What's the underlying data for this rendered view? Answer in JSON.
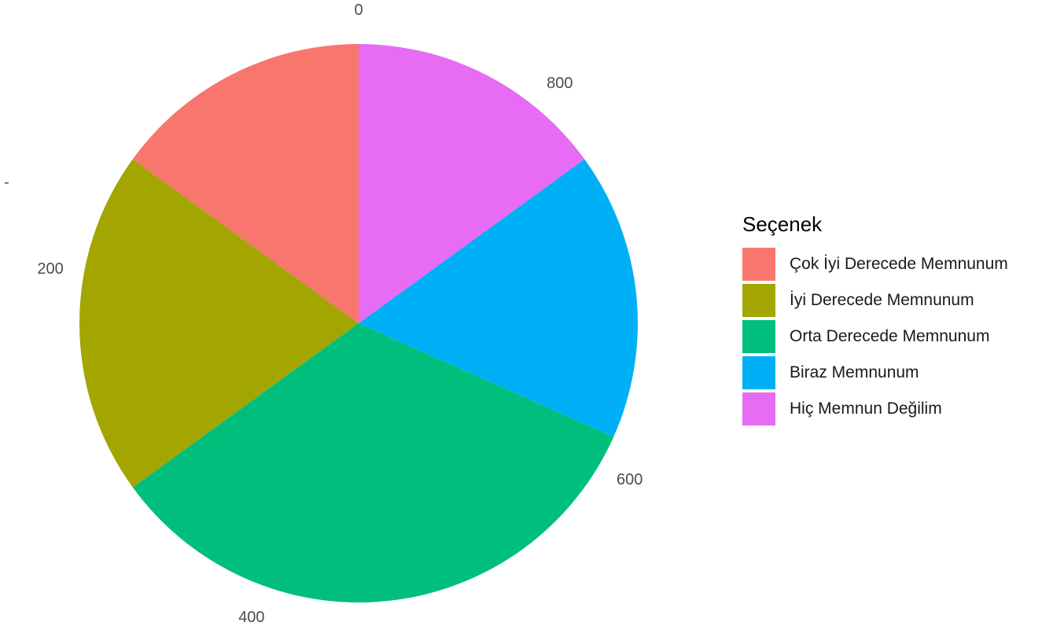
{
  "chart_data": {
    "type": "pie",
    "title": "",
    "xlabel": "",
    "ylabel": "-",
    "legend_title": "Seçenek",
    "legend_position": "right",
    "direction": "counterclockwise",
    "total": 900,
    "categories": [
      "Çok İyi Derecede Memnunum",
      "İyi Derecede Memnunum",
      "Orta Derecede Memnunum",
      "Biraz Memnunum",
      "Hiç Memnun Değilim"
    ],
    "values": [
      135,
      180,
      300,
      150,
      135
    ],
    "colors": [
      "#F8766D",
      "#A3A500",
      "#00BF7D",
      "#00B0F6",
      "#E76BF3"
    ],
    "ticks": [
      {
        "value": 0,
        "label": "0"
      },
      {
        "value": 200,
        "label": "200"
      },
      {
        "value": 400,
        "label": "400"
      },
      {
        "value": 600,
        "label": "600"
      },
      {
        "value": 800,
        "label": "800"
      }
    ]
  }
}
